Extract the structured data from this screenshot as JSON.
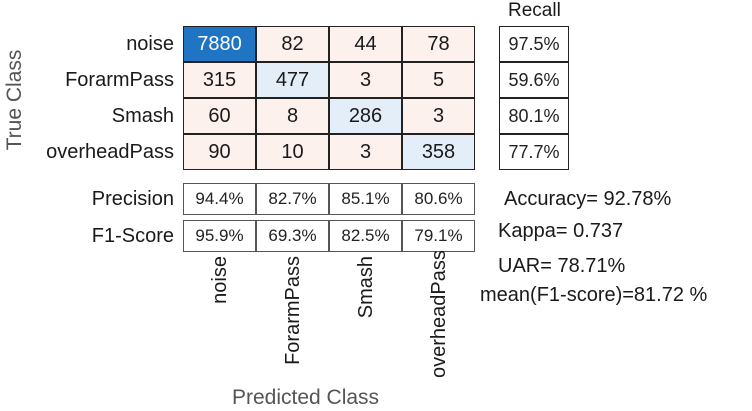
{
  "chart_data": {
    "type": "heatmap",
    "ylabel": "True Class",
    "xlabel": "Predicted Class",
    "classes": [
      "noise",
      "ForarmPass",
      "Smash",
      "overheadPass"
    ],
    "matrix": [
      [
        7880,
        82,
        44,
        78
      ],
      [
        315,
        477,
        3,
        5
      ],
      [
        60,
        8,
        286,
        3
      ],
      [
        90,
        10,
        3,
        358
      ]
    ],
    "recall_title": "Recall",
    "recall": [
      "97.5%",
      "59.6%",
      "80.1%",
      "77.7%"
    ],
    "precision_label": "Precision",
    "precision": [
      "94.4%",
      "82.7%",
      "85.1%",
      "80.6%"
    ],
    "f1_label": "F1-Score",
    "f1": [
      "95.9%",
      "69.3%",
      "82.5%",
      "79.1%"
    ],
    "stats": [
      "Accuracy= 92.78%",
      "Kappa= 0.737",
      "UAR= 78.71%",
      "mean(F1-score)=81.72 %"
    ],
    "colors": {
      "diag_strong": "#1f74c4",
      "diag_light": "#e3eef8",
      "off_diag": "#fdf1ee"
    }
  }
}
